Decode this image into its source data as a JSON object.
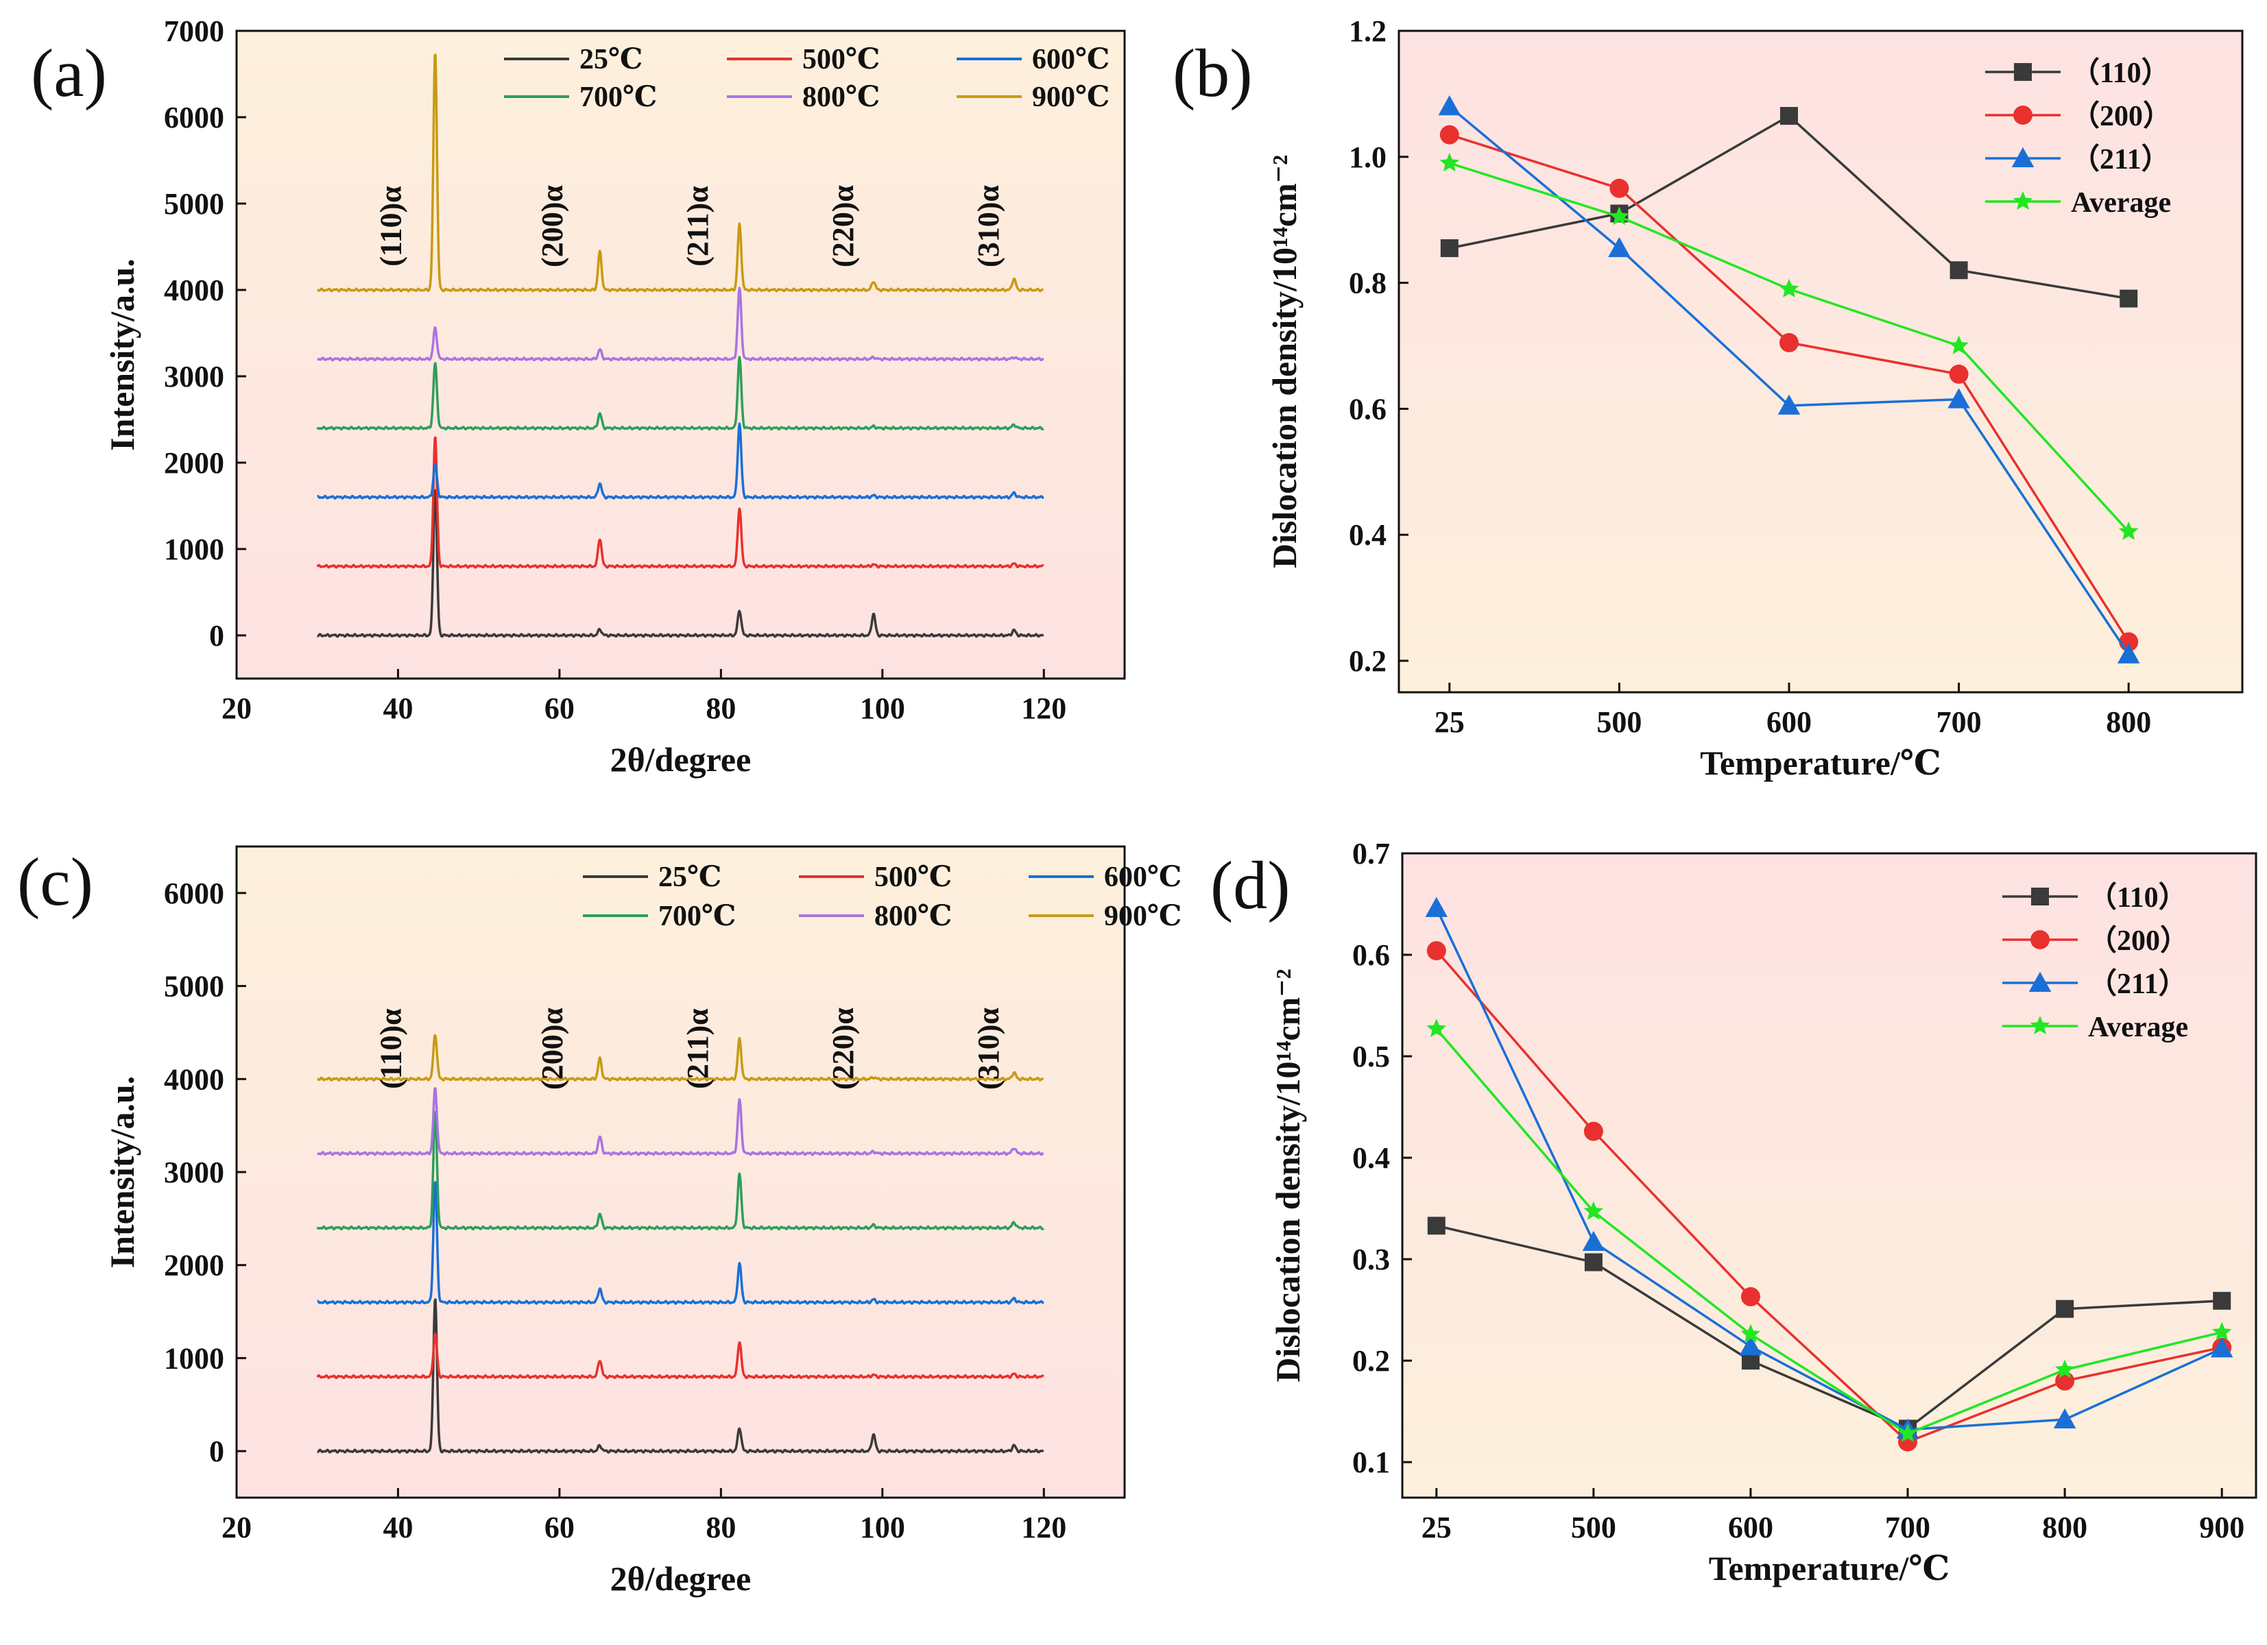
{
  "chart_data": [
    {
      "panel": "(a)",
      "type": "line",
      "xlabel": "2θ/degree",
      "ylabel": "Intensity/a.u.",
      "xlim": [
        20,
        130
      ],
      "ylim": [
        -500,
        7000
      ],
      "xticks": [
        20,
        40,
        60,
        80,
        100,
        120
      ],
      "yticks": [
        0,
        1000,
        2000,
        3000,
        4000,
        5000,
        6000,
        7000
      ],
      "xrange": [
        30,
        120
      ],
      "series": [
        {
          "name": "25℃",
          "color": "#3a3a3a",
          "offset": 0,
          "peaks": [
            [
              44.6,
              1700
            ],
            [
              65.0,
              70
            ],
            [
              82.3,
              290
            ],
            [
              98.9,
              250
            ],
            [
              116.3,
              60
            ]
          ]
        },
        {
          "name": "500℃",
          "color": "#e8312f",
          "offset": 800,
          "peaks": [
            [
              44.6,
              1500
            ],
            [
              65.0,
              320
            ],
            [
              82.3,
              680
            ],
            [
              98.9,
              20
            ],
            [
              116.3,
              30
            ]
          ]
        },
        {
          "name": "600℃",
          "color": "#1a6fd6",
          "offset": 1600,
          "peaks": [
            [
              44.6,
              380
            ],
            [
              65.0,
              160
            ],
            [
              82.3,
              850
            ],
            [
              98.9,
              20
            ],
            [
              116.3,
              50
            ]
          ]
        },
        {
          "name": "700℃",
          "color": "#2e9e5b",
          "offset": 2400,
          "peaks": [
            [
              44.6,
              750
            ],
            [
              65.0,
              170
            ],
            [
              82.3,
              820
            ],
            [
              98.9,
              20
            ],
            [
              116.3,
              40
            ]
          ]
        },
        {
          "name": "800℃",
          "color": "#a973e2",
          "offset": 3200,
          "peaks": [
            [
              44.6,
              360
            ],
            [
              65.0,
              110
            ],
            [
              82.3,
              820
            ],
            [
              98.9,
              20
            ],
            [
              116.3,
              20
            ]
          ]
        },
        {
          "name": "900℃",
          "color": "#c89a12",
          "offset": 4000,
          "peaks": [
            [
              44.6,
              2760
            ],
            [
              65.0,
              440
            ],
            [
              82.3,
              760
            ],
            [
              98.9,
              100
            ],
            [
              116.3,
              130
            ]
          ]
        }
      ],
      "annotations": [
        {
          "text": "(110)α",
          "x": 39
        },
        {
          "text": "(200)α",
          "x": 59
        },
        {
          "text": "(211)α",
          "x": 77
        },
        {
          "text": "(220)α",
          "x": 95
        },
        {
          "text": "(310)α",
          "x": 113
        }
      ],
      "legend": "top-right"
    },
    {
      "panel": "(b)",
      "type": "line",
      "xlabel": "Temperature/℃",
      "ylabel": "Dislocation density/10¹⁴cm⁻²",
      "categories": [
        "25",
        "500",
        "600",
        "700",
        "800"
      ],
      "ylim": [
        0.15,
        1.2
      ],
      "yticks": [
        0.2,
        0.4,
        0.6,
        0.8,
        1.0,
        1.2
      ],
      "ytick_labels": [
        "0.2",
        "0.4",
        "0.6",
        "0.8",
        "1.0",
        "1.2"
      ],
      "series": [
        {
          "name": "（110）",
          "color": "#3a3a3a",
          "marker": "square",
          "values": [
            0.855,
            0.91,
            1.065,
            0.82,
            0.775
          ]
        },
        {
          "name": "（200）",
          "color": "#e8312f",
          "marker": "circle",
          "values": [
            1.035,
            0.95,
            0.705,
            0.655,
            0.23
          ]
        },
        {
          "name": "（211）",
          "color": "#1a6fd6",
          "marker": "triangle",
          "values": [
            1.08,
            0.855,
            0.605,
            0.615,
            0.21
          ]
        },
        {
          "name": "Average",
          "color": "#22e622",
          "marker": "star",
          "values": [
            0.99,
            0.905,
            0.79,
            0.7,
            0.405
          ]
        }
      ],
      "legend": "top-right"
    },
    {
      "panel": "(c)",
      "type": "line",
      "xlabel": "2θ/degree",
      "ylabel": "Intensity/a.u.",
      "xlim": [
        20,
        130
      ],
      "ylim": [
        -500,
        6500
      ],
      "xticks": [
        20,
        40,
        60,
        80,
        100,
        120
      ],
      "yticks": [
        0,
        1000,
        2000,
        3000,
        4000,
        5000,
        6000
      ],
      "xrange": [
        30,
        120
      ],
      "series": [
        {
          "name": "25℃",
          "color": "#3a3a3a",
          "offset": 0,
          "peaks": [
            [
              44.6,
              1650
            ],
            [
              65.0,
              60
            ],
            [
              82.3,
              250
            ],
            [
              98.9,
              180
            ],
            [
              116.3,
              60
            ]
          ]
        },
        {
          "name": "500℃",
          "color": "#e8312f",
          "offset": 800,
          "peaks": [
            [
              44.6,
              460
            ],
            [
              65.0,
              180
            ],
            [
              82.3,
              380
            ],
            [
              98.9,
              20
            ],
            [
              116.3,
              30
            ]
          ]
        },
        {
          "name": "600℃",
          "color": "#1a6fd6",
          "offset": 1600,
          "peaks": [
            [
              44.6,
              1300
            ],
            [
              65.0,
              150
            ],
            [
              82.3,
              420
            ],
            [
              98.9,
              30
            ],
            [
              116.3,
              40
            ]
          ]
        },
        {
          "name": "700℃",
          "color": "#2e9e5b",
          "offset": 2400,
          "peaks": [
            [
              44.6,
              1250
            ],
            [
              65.0,
              150
            ],
            [
              82.3,
              580
            ],
            [
              98.9,
              30
            ],
            [
              116.3,
              60
            ]
          ]
        },
        {
          "name": "800℃",
          "color": "#a973e2",
          "offset": 3200,
          "peaks": [
            [
              44.6,
              700
            ],
            [
              65.0,
              180
            ],
            [
              82.3,
              580
            ],
            [
              98.9,
              20
            ],
            [
              116.3,
              60
            ]
          ]
        },
        {
          "name": "900℃",
          "color": "#c89a12",
          "offset": 4000,
          "peaks": [
            [
              44.6,
              480
            ],
            [
              65.0,
              220
            ],
            [
              82.3,
              430
            ],
            [
              98.9,
              20
            ],
            [
              116.3,
              70
            ]
          ]
        }
      ],
      "annotations": [
        {
          "text": "(110)α",
          "x": 39
        },
        {
          "text": "(200)α",
          "x": 59
        },
        {
          "text": "(211)α",
          "x": 77
        },
        {
          "text": "(220)α",
          "x": 95
        },
        {
          "text": "(310)α",
          "x": 113
        }
      ],
      "legend": "top-right"
    },
    {
      "panel": "(d)",
      "type": "line",
      "xlabel": "Temperature/℃",
      "ylabel": "Dislocation density/10¹⁴cm⁻²",
      "categories": [
        "25",
        "500",
        "600",
        "700",
        "800",
        "900"
      ],
      "ylim": [
        0.065,
        0.7
      ],
      "yticks": [
        0.1,
        0.2,
        0.3,
        0.4,
        0.5,
        0.6,
        0.7
      ],
      "ytick_labels": [
        "0.1",
        "0.2",
        "0.3",
        "0.4",
        "0.5",
        "0.6",
        "0.7"
      ],
      "series": [
        {
          "name": "（110）",
          "color": "#3a3a3a",
          "marker": "square",
          "values": [
            0.333,
            0.297,
            0.2,
            0.133,
            0.251,
            0.259
          ]
        },
        {
          "name": "（200）",
          "color": "#e8312f",
          "marker": "circle",
          "values": [
            0.604,
            0.426,
            0.263,
            0.12,
            0.18,
            0.213
          ]
        },
        {
          "name": "（211）",
          "color": "#1a6fd6",
          "marker": "triangle",
          "values": [
            0.646,
            0.317,
            0.214,
            0.132,
            0.142,
            0.212
          ]
        },
        {
          "name": "Average",
          "color": "#22e622",
          "marker": "star",
          "values": [
            0.527,
            0.347,
            0.226,
            0.128,
            0.191,
            0.228
          ]
        }
      ],
      "legend": "top-right"
    }
  ]
}
